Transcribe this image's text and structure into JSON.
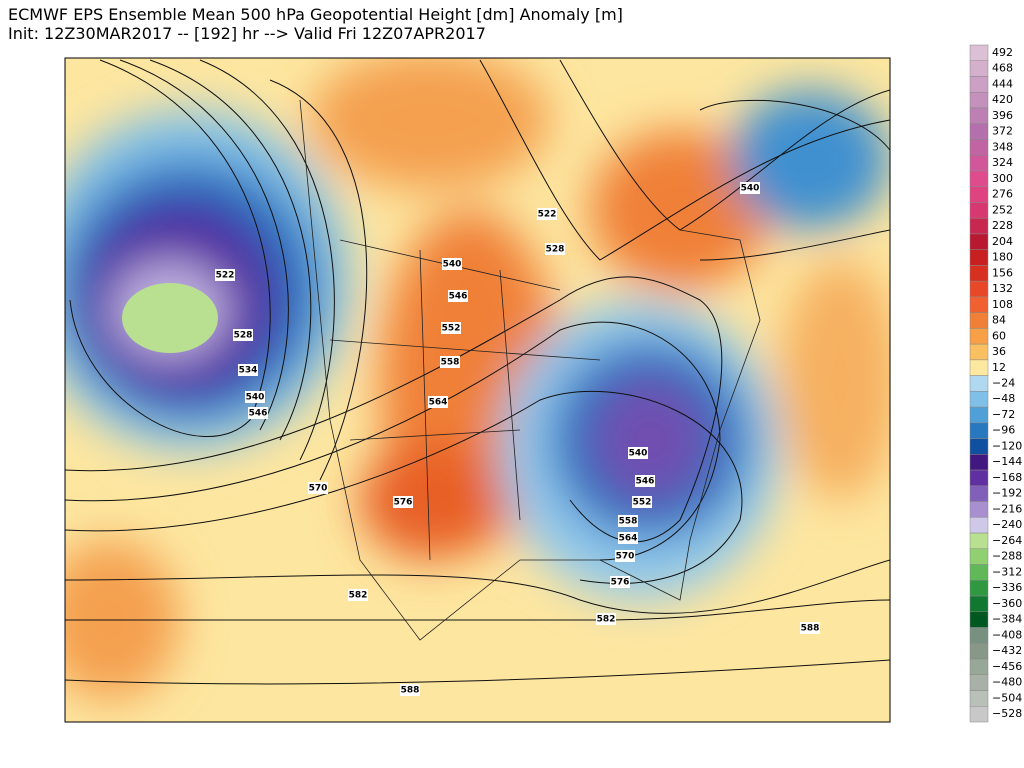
{
  "header": {
    "title": "ECMWF EPS Ensemble Mean 500 hPa Geopotential Height [dm] Anomaly [m]",
    "subtitle": "Init: 12Z30MAR2017 -- [192] hr --> Valid Fri 12Z07APR2017"
  },
  "colorbar": {
    "entries": [
      {
        "label": "492",
        "color": "#dcc0d6"
      },
      {
        "label": "468",
        "color": "#d4b0cc"
      },
      {
        "label": "444",
        "color": "#cca0c4"
      },
      {
        "label": "420",
        "color": "#c490bc"
      },
      {
        "label": "396",
        "color": "#bc80b4"
      },
      {
        "label": "372",
        "color": "#b470ac"
      },
      {
        "label": "348",
        "color": "#c064a4"
      },
      {
        "label": "324",
        "color": "#d0589a"
      },
      {
        "label": "300",
        "color": "#de4c8e"
      },
      {
        "label": "276",
        "color": "#e04480"
      },
      {
        "label": "252",
        "color": "#d83870"
      },
      {
        "label": "228",
        "color": "#c82850"
      },
      {
        "label": "204",
        "color": "#b81830"
      },
      {
        "label": "180",
        "color": "#c82020"
      },
      {
        "label": "156",
        "color": "#d83020"
      },
      {
        "label": "132",
        "color": "#e84828"
      },
      {
        "label": "108",
        "color": "#f06030"
      },
      {
        "label": "84",
        "color": "#f08038"
      },
      {
        "label": "60",
        "color": "#f8a048"
      },
      {
        "label": "36",
        "color": "#f8c060"
      },
      {
        "label": "12",
        "color": "#fde8a0"
      },
      {
        "label": "−24",
        "color": "#b0d8f0"
      },
      {
        "label": "−48",
        "color": "#80c0e8"
      },
      {
        "label": "−72",
        "color": "#50a0d8"
      },
      {
        "label": "−96",
        "color": "#2878c0"
      },
      {
        "label": "−120",
        "color": "#1050a0"
      },
      {
        "label": "−144",
        "color": "#401880"
      },
      {
        "label": "−168",
        "color": "#6030a0"
      },
      {
        "label": "−192",
        "color": "#8060b8"
      },
      {
        "label": "−216",
        "color": "#a890d0"
      },
      {
        "label": "−240",
        "color": "#d0c8e8"
      },
      {
        "label": "−264",
        "color": "#b8e090"
      },
      {
        "label": "−288",
        "color": "#90d070"
      },
      {
        "label": "−312",
        "color": "#60b858"
      },
      {
        "label": "−336",
        "color": "#309840"
      },
      {
        "label": "−360",
        "color": "#107830"
      },
      {
        "label": "−384",
        "color": "#005820"
      },
      {
        "label": "−408",
        "color": "#789080"
      },
      {
        "label": "−432",
        "color": "#889888"
      },
      {
        "label": "−456",
        "color": "#98a898"
      },
      {
        "label": "−480",
        "color": "#a8b0a8"
      },
      {
        "label": "−504",
        "color": "#b8c0b8"
      },
      {
        "label": "−528",
        "color": "#c8c8c8"
      }
    ]
  },
  "contour_labels": [
    "522",
    "528",
    "534",
    "540",
    "546",
    "522",
    "528",
    "540",
    "546",
    "552",
    "558",
    "564",
    "570",
    "576",
    "582",
    "588",
    "540",
    "540",
    "546",
    "552",
    "558",
    "564",
    "570",
    "576",
    "582",
    "588"
  ]
}
